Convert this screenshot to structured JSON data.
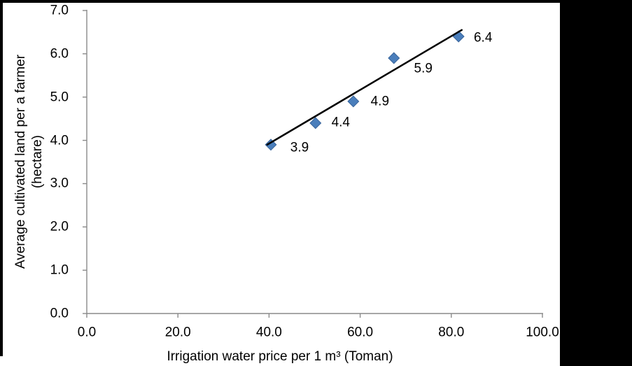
{
  "chart_data": {
    "type": "scatter",
    "title": "",
    "xlabel": "Irrigation water price per 1 m³ (Toman)",
    "ylabel_line1": "Average cultivated land per a farmer",
    "ylabel_line2": "(hectare)",
    "xlim": [
      0.0,
      100.0
    ],
    "ylim": [
      0.0,
      7.0
    ],
    "x_ticks": [
      "0.0",
      "20.0",
      "40.0",
      "60.0",
      "80.0",
      "100.0"
    ],
    "y_ticks": [
      "0.0",
      "1.0",
      "2.0",
      "3.0",
      "4.0",
      "5.0",
      "6.0",
      "7.0"
    ],
    "grid": false,
    "legend": false,
    "axis_color": "#8a8a8a",
    "text_color": "#000000",
    "series": [
      {
        "name": "Average cultivated land per a farmer",
        "marker": "diamond",
        "marker_color": "#4a7ebb",
        "marker_border_color": "#38649b",
        "points": [
          {
            "x": 40.4,
            "y": 3.9,
            "label": "3.9"
          },
          {
            "x": 50.2,
            "y": 4.4,
            "label": "4.4"
          },
          {
            "x": 58.5,
            "y": 4.9,
            "label": "4.9"
          },
          {
            "x": 67.4,
            "y": 5.9,
            "label": "5.9"
          },
          {
            "x": 81.6,
            "y": 6.4,
            "label": "6.4"
          }
        ]
      }
    ],
    "trendline": {
      "type": "linear",
      "color": "#000000",
      "x1": 39.6,
      "y1": 3.9,
      "x2": 82.3,
      "y2": 6.55
    }
  }
}
